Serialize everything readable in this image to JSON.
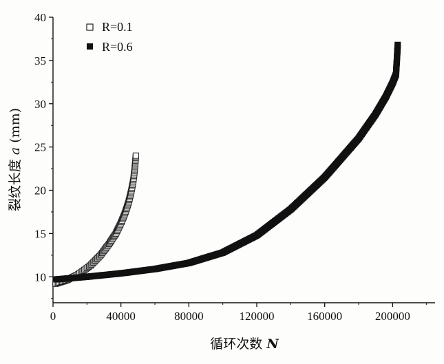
{
  "chart_data": {
    "type": "scatter",
    "title": "",
    "xlabel": "循环次数",
    "xlabel_symbol": "N",
    "ylabel": "裂纹长度",
    "ylabel_symbol": "a",
    "ylabel_unit": "(mm)",
    "xlim": [
      0,
      225000
    ],
    "ylim": [
      7,
      40
    ],
    "x_ticks": [
      0,
      40000,
      80000,
      120000,
      160000,
      200000
    ],
    "y_ticks": [
      10,
      15,
      20,
      25,
      30,
      35,
      40
    ],
    "grid": false,
    "legend_position": "top-left",
    "series": [
      {
        "name": "R=0.1",
        "marker": "open-square",
        "color": "#222222",
        "x": [
          1500,
          8000,
          15000,
          22000,
          28000,
          33000,
          37000,
          40000,
          42500,
          44500,
          46000,
          47200,
          48000,
          48500,
          48800
        ],
        "y": [
          9.2,
          9.6,
          10.3,
          11.3,
          12.5,
          13.8,
          15.0,
          16.2,
          17.4,
          18.6,
          19.8,
          21.0,
          22.2,
          23.3,
          24.0
        ]
      },
      {
        "name": "R=0.6",
        "marker": "filled-square",
        "color": "#111111",
        "x": [
          2000,
          20000,
          40000,
          60000,
          80000,
          100000,
          120000,
          140000,
          160000,
          180000,
          190000,
          196000,
          200000,
          202000,
          202500,
          203000
        ],
        "y": [
          9.7,
          10.0,
          10.4,
          10.9,
          11.6,
          12.8,
          14.8,
          17.8,
          21.5,
          26.0,
          28.8,
          30.8,
          32.4,
          33.4,
          35.0,
          36.8
        ]
      }
    ]
  }
}
